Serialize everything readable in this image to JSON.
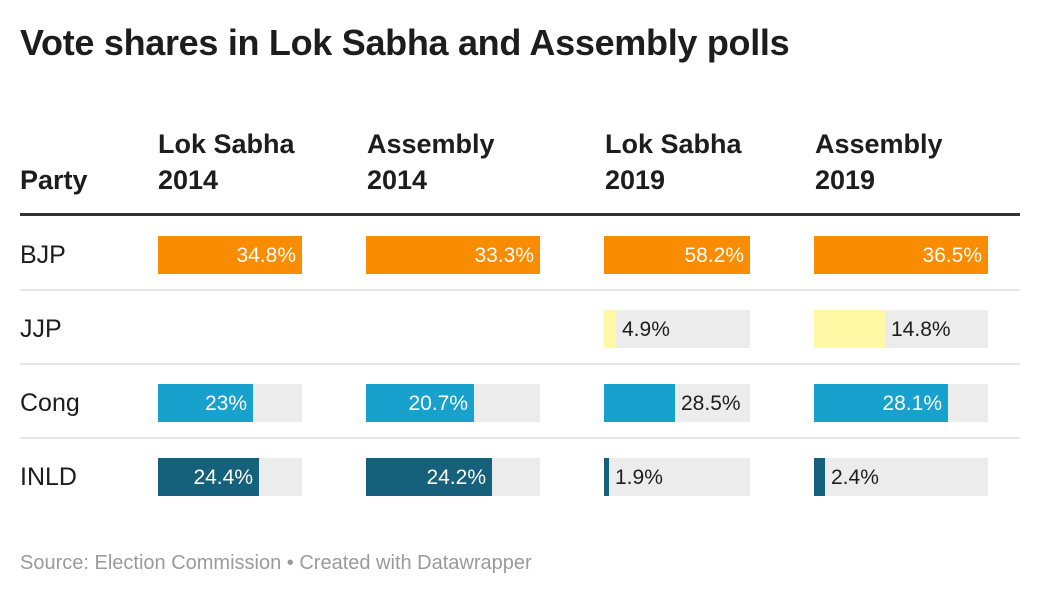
{
  "title": "Vote shares in Lok Sabha and Assembly polls",
  "footer": {
    "source": "Source: Election Commission",
    "sep": " • ",
    "credit": "Created with Datawrapper"
  },
  "chart_data": {
    "type": "table",
    "columns": [
      {
        "label_1": "Party",
        "label_2": ""
      },
      {
        "label_1": "Lok Sabha",
        "label_2": "2014"
      },
      {
        "label_1": "Assembly",
        "label_2": "2014"
      },
      {
        "label_1": "Lok Sabha",
        "label_2": "2019"
      },
      {
        "label_1": "Assembly",
        "label_2": "2019"
      }
    ],
    "rows": [
      {
        "party": "BJP",
        "color": "#f98c00",
        "values": [
          34.8,
          33.3,
          58.2,
          36.5
        ],
        "labels": [
          "34.8%",
          "33.3%",
          "58.2%",
          "36.5%"
        ]
      },
      {
        "party": "JJP",
        "color": "#fff9a6",
        "values": [
          null,
          null,
          4.9,
          14.8
        ],
        "labels": [
          "",
          "",
          "4.9%",
          "14.8%"
        ]
      },
      {
        "party": "Cong",
        "color": "#18a1cd",
        "values": [
          23,
          20.7,
          28.5,
          28.1
        ],
        "labels": [
          "23%",
          "20.7%",
          "28.5%",
          "28.1%"
        ]
      },
      {
        "party": "INLD",
        "color": "#15607a",
        "values": [
          24.4,
          24.2,
          1.9,
          2.4
        ],
        "labels": [
          "24.4%",
          "24.2%",
          "1.9%",
          "2.4%"
        ]
      }
    ],
    "column_max": [
      34.8,
      33.3,
      58.2,
      36.5
    ],
    "bar_background": "#ececec"
  }
}
